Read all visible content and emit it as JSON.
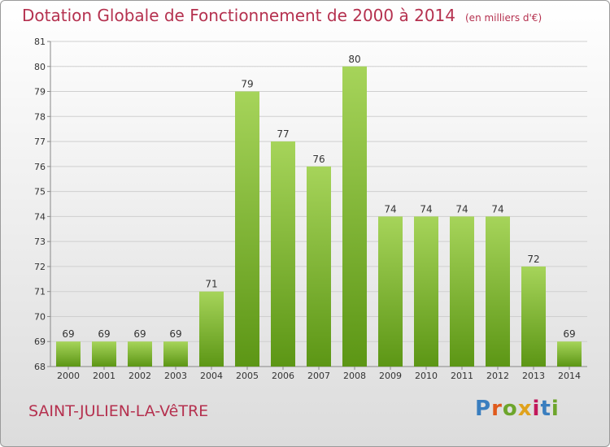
{
  "header": {
    "title": "Dotation Globale de Fonctionnement de 2000 à 2014",
    "unit": "(en milliers d'€)"
  },
  "footer": {
    "commune": "SAINT-JULIEN-LA-VêTRE",
    "logo_text": "Proxiti",
    "logo_colors": [
      "#3a7ebf",
      "#e05a1c",
      "#6da52b",
      "#e0a21c",
      "#c2185b",
      "#3a7ebf",
      "#6da52b"
    ]
  },
  "colors": {
    "title": "#b5314f",
    "bar_light": "#a6d45a",
    "bar_dark": "#5c9615",
    "grid": "#cfcfcf"
  },
  "chart_data": {
    "type": "bar",
    "title": "Dotation Globale de Fonctionnement de 2000 à 2014",
    "ylabel": "(en milliers d'€)",
    "categories": [
      "2000",
      "2001",
      "2002",
      "2003",
      "2004",
      "2005",
      "2006",
      "2007",
      "2008",
      "2009",
      "2010",
      "2011",
      "2012",
      "2013",
      "2014"
    ],
    "values": [
      69,
      69,
      69,
      69,
      71,
      79,
      77,
      76,
      80,
      74,
      74,
      74,
      74,
      72,
      69
    ],
    "ylim": [
      68,
      81
    ],
    "yticks": [
      68,
      69,
      70,
      71,
      72,
      73,
      74,
      75,
      76,
      77,
      78,
      79,
      80,
      81
    ],
    "grid": true,
    "legend": "none"
  }
}
